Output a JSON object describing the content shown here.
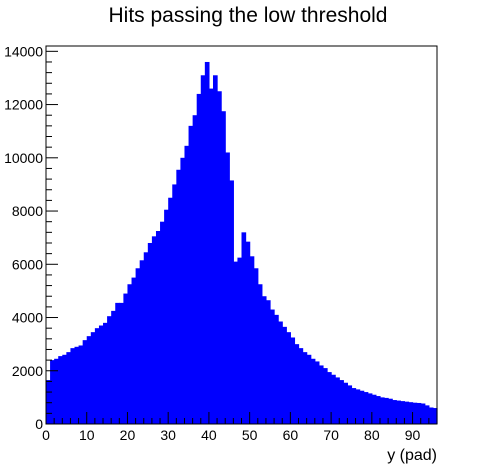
{
  "chart_data": {
    "type": "bar",
    "title": "Hits passing the low threshold",
    "xlabel": "y (pad)",
    "ylabel": "",
    "xlim": [
      0,
      96
    ],
    "ylim": [
      0,
      14200
    ],
    "x_ticks": [
      "0",
      "10",
      "20",
      "30",
      "40",
      "50",
      "60",
      "70",
      "80",
      "90"
    ],
    "y_ticks": [
      "0",
      "2000",
      "4000",
      "6000",
      "8000",
      "10000",
      "12000",
      "14000"
    ],
    "bin_width": 1,
    "fill_color": "#0000ff",
    "values": [
      1650,
      2400,
      2450,
      2550,
      2600,
      2700,
      2850,
      2900,
      2950,
      3150,
      3300,
      3450,
      3600,
      3700,
      3800,
      4050,
      4250,
      4550,
      4550,
      4900,
      5250,
      5500,
      5850,
      6150,
      6450,
      6800,
      7050,
      7250,
      7600,
      8050,
      8500,
      9000,
      9550,
      10000,
      10450,
      11200,
      11600,
      12400,
      13100,
      13600,
      12600,
      13100,
      12500,
      11750,
      10200,
      9150,
      6100,
      6250,
      7200,
      6850,
      6300,
      5850,
      5250,
      4800,
      4650,
      4300,
      4100,
      3850,
      3650,
      3450,
      3250,
      3000,
      2850,
      2700,
      2600,
      2450,
      2350,
      2200,
      2100,
      1950,
      1850,
      1750,
      1650,
      1550,
      1450,
      1350,
      1300,
      1250,
      1200,
      1150,
      1100,
      1050,
      1000,
      980,
      950,
      900,
      880,
      860,
      840,
      820,
      800,
      790,
      770,
      700,
      620,
      600
    ]
  }
}
